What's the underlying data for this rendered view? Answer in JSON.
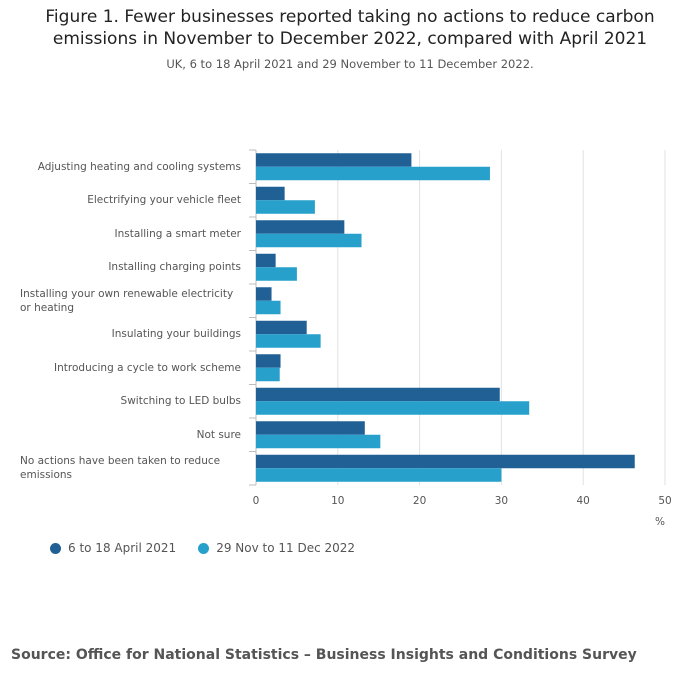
{
  "header": {
    "title_line1": "Figure 1. Fewer businesses reported taking no actions to reduce carbon",
    "title_line2": "emissions in November to December 2022, compared with April 2021",
    "subtitle": "UK, 6 to 18 April 2021 and 29 November to 11 December 2022."
  },
  "chart_data": {
    "type": "bar",
    "orientation": "horizontal",
    "title": "Figure 1. Fewer businesses reported taking no actions to reduce carbon emissions in November to December 2022, compared with April 2021",
    "subtitle": "UK, 6 to 18 April 2021 and 29 November to 11 December 2022.",
    "categories": [
      [
        "Adjusting heating and cooling systems"
      ],
      [
        "Electrifying your vehicle fleet"
      ],
      [
        "Installing a smart meter"
      ],
      [
        "Installing charging points"
      ],
      [
        "Installing your own renewable electricity",
        "or heating"
      ],
      [
        "Insulating your buildings"
      ],
      [
        "Introducing a cycle to work scheme"
      ],
      [
        "Switching to LED bulbs"
      ],
      [
        "Not sure"
      ],
      [
        "No actions have been taken to reduce",
        "emissions"
      ]
    ],
    "series": [
      {
        "name": "6 to 18 April 2021",
        "color": "#206095",
        "values": [
          19,
          3.5,
          10.8,
          2.4,
          1.9,
          6.2,
          3.0,
          29.8,
          13.3,
          46.3
        ]
      },
      {
        "name": "29 Nov to 11 Dec 2022",
        "color": "#27a0cc",
        "values": [
          28.6,
          7.2,
          12.9,
          5.0,
          3.0,
          7.9,
          2.9,
          33.4,
          15.2,
          30.0
        ]
      }
    ],
    "xlim": [
      0,
      50
    ],
    "xticks": [
      "0",
      "10",
      "20",
      "30",
      "40",
      "50"
    ],
    "xlabel": "%",
    "grid": true,
    "legend_position": "bottom-left"
  },
  "footer": {
    "source": "Source: Office for National Statistics – Business Insights and Conditions Survey"
  }
}
